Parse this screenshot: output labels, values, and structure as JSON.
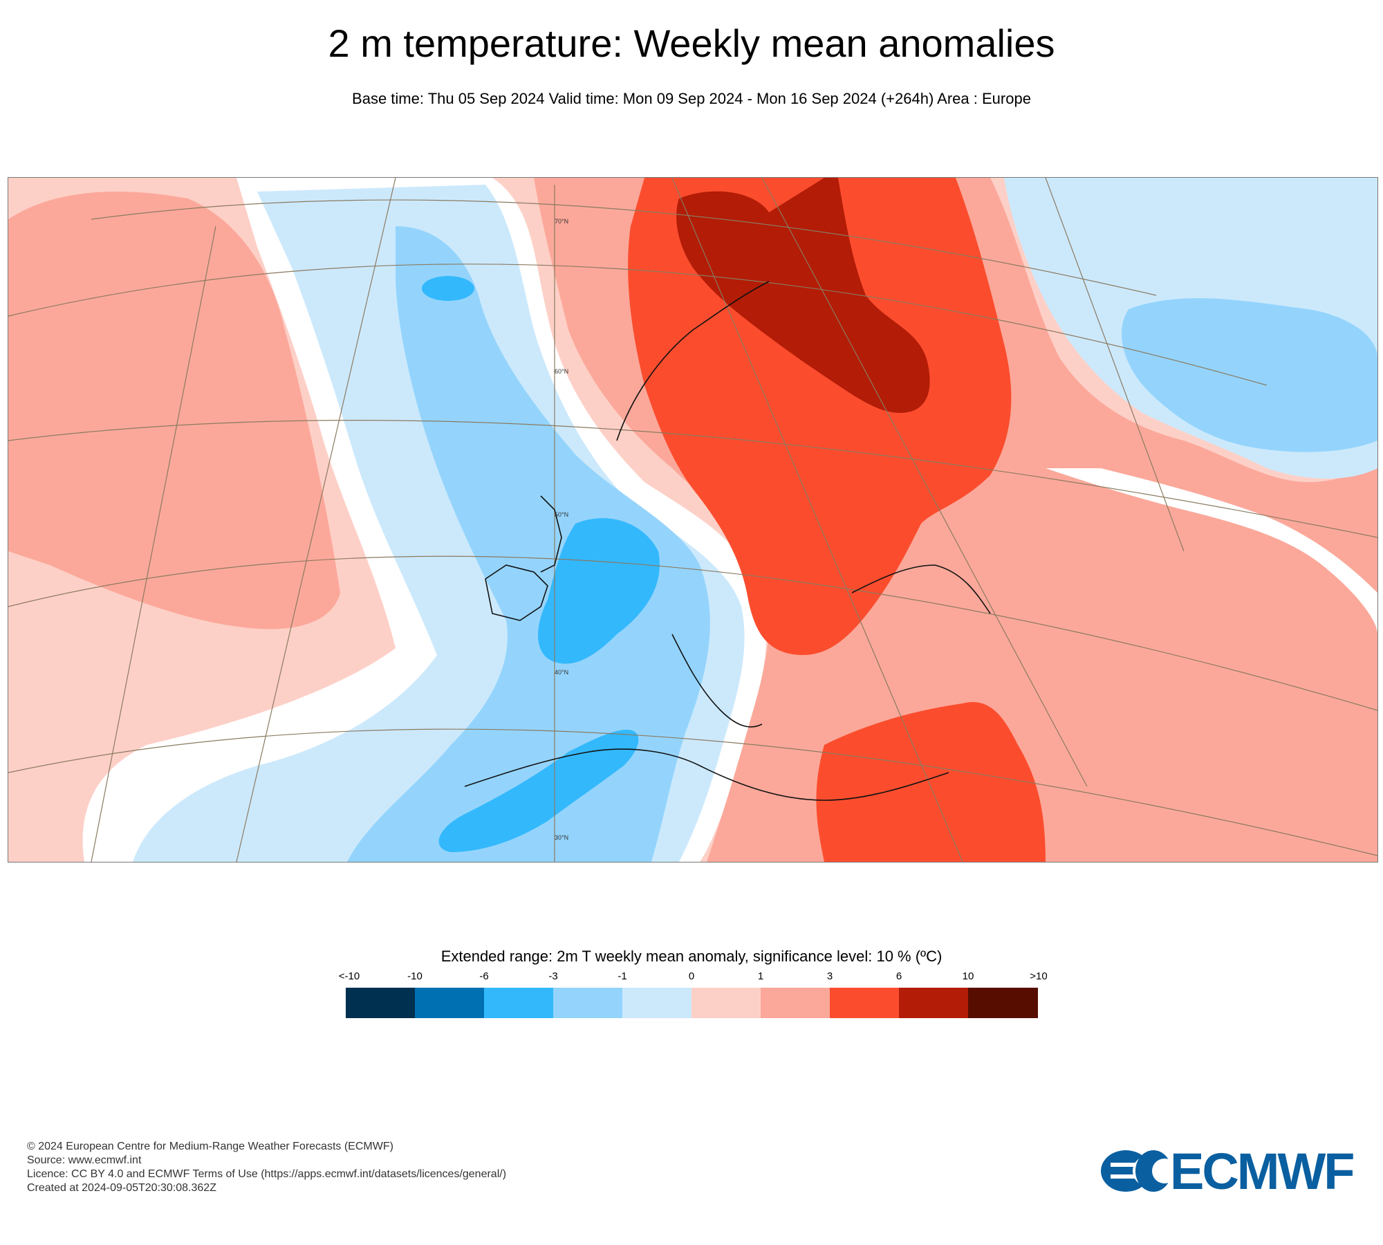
{
  "title": "2 m temperature: Weekly mean anomalies",
  "subtitle": "Base time: Thu 05 Sep 2024 Valid time: Mon 09 Sep 2024 - Mon 16 Sep 2024 (+264h) Area : Europe",
  "map": {
    "latitude_labels": [
      "70°N",
      "60°N",
      "50°N",
      "40°N",
      "30°N"
    ],
    "colors": {
      "bg": "#fdd0c7",
      "pink_mid": "#fba89a",
      "red": "#fb4d2e",
      "dark_red": "#b31c06",
      "white": "#ffffff",
      "pale_blue": "#cce9fc",
      "light_blue": "#94d4fc",
      "blue": "#33b8fc",
      "mid_blue": "#1a8fd9"
    }
  },
  "legend": {
    "title": "Extended range: 2m T weekly mean anomaly, significance level: 10 % (ºC)",
    "ticks": [
      "<-10",
      "-10",
      "-6",
      "-3",
      "-1",
      "0",
      "1",
      "3",
      "6",
      "10",
      ">10"
    ],
    "colors": [
      "#00304f",
      "#0070b3",
      "#33b8fc",
      "#94d4fc",
      "#cce9fc",
      "#fdd0c7",
      "#fba89a",
      "#fb4d2e",
      "#b31c06",
      "#570d00"
    ]
  },
  "footer": {
    "copyright": "© 2024 European Centre for Medium-Range Weather Forecasts (ECMWF)",
    "source": "Source: www.ecmwf.int",
    "licence": "Licence: CC BY 4.0 and ECMWF Terms of Use (https://apps.ecmwf.int/datasets/licences/general/)",
    "created": "Created at 2024-09-05T20:30:08.362Z"
  },
  "logo": {
    "text": "ECMWF",
    "color": "#0a5fa0"
  }
}
